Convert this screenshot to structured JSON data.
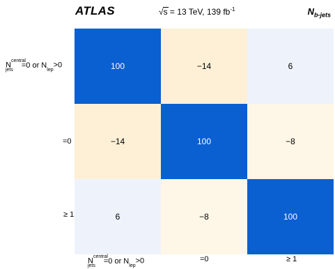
{
  "header": {
    "experiment": "ATLAS",
    "sqrt_s_label": "s",
    "energy_label": " = 13 TeV, 139 fb",
    "lumi_exponent": "-1",
    "variable_main": "N",
    "variable_sub": "b-jets"
  },
  "axis_labels": {
    "first_N": "N",
    "first_sup": "central",
    "first_sub": "jets",
    "first_mid": "=0 or N",
    "first_sub2": "lep",
    "first_end": ">0",
    "second": "=0",
    "third": "≥ 1"
  },
  "chart_data": {
    "type": "heatmap",
    "title": "",
    "categories": [
      "N_jets^central=0 or N_lep>0",
      "=0",
      "≥ 1"
    ],
    "matrix": [
      [
        100,
        -14,
        6
      ],
      [
        -14,
        100,
        -8
      ],
      [
        6,
        -8,
        100
      ]
    ],
    "value_labels": [
      [
        "100",
        "−14",
        "6"
      ],
      [
        "−14",
        "100",
        "−8"
      ],
      [
        "6",
        "−8",
        "100"
      ]
    ],
    "colors": {
      "high": "#0a5fd1",
      "negative_strong": "#fdf0d6",
      "negative_weak": "#fef6e6",
      "positive_weak": "#eef3fb",
      "text_on_high": "#ffffff",
      "text": "#000000"
    },
    "grid": false,
    "legend": "none"
  }
}
